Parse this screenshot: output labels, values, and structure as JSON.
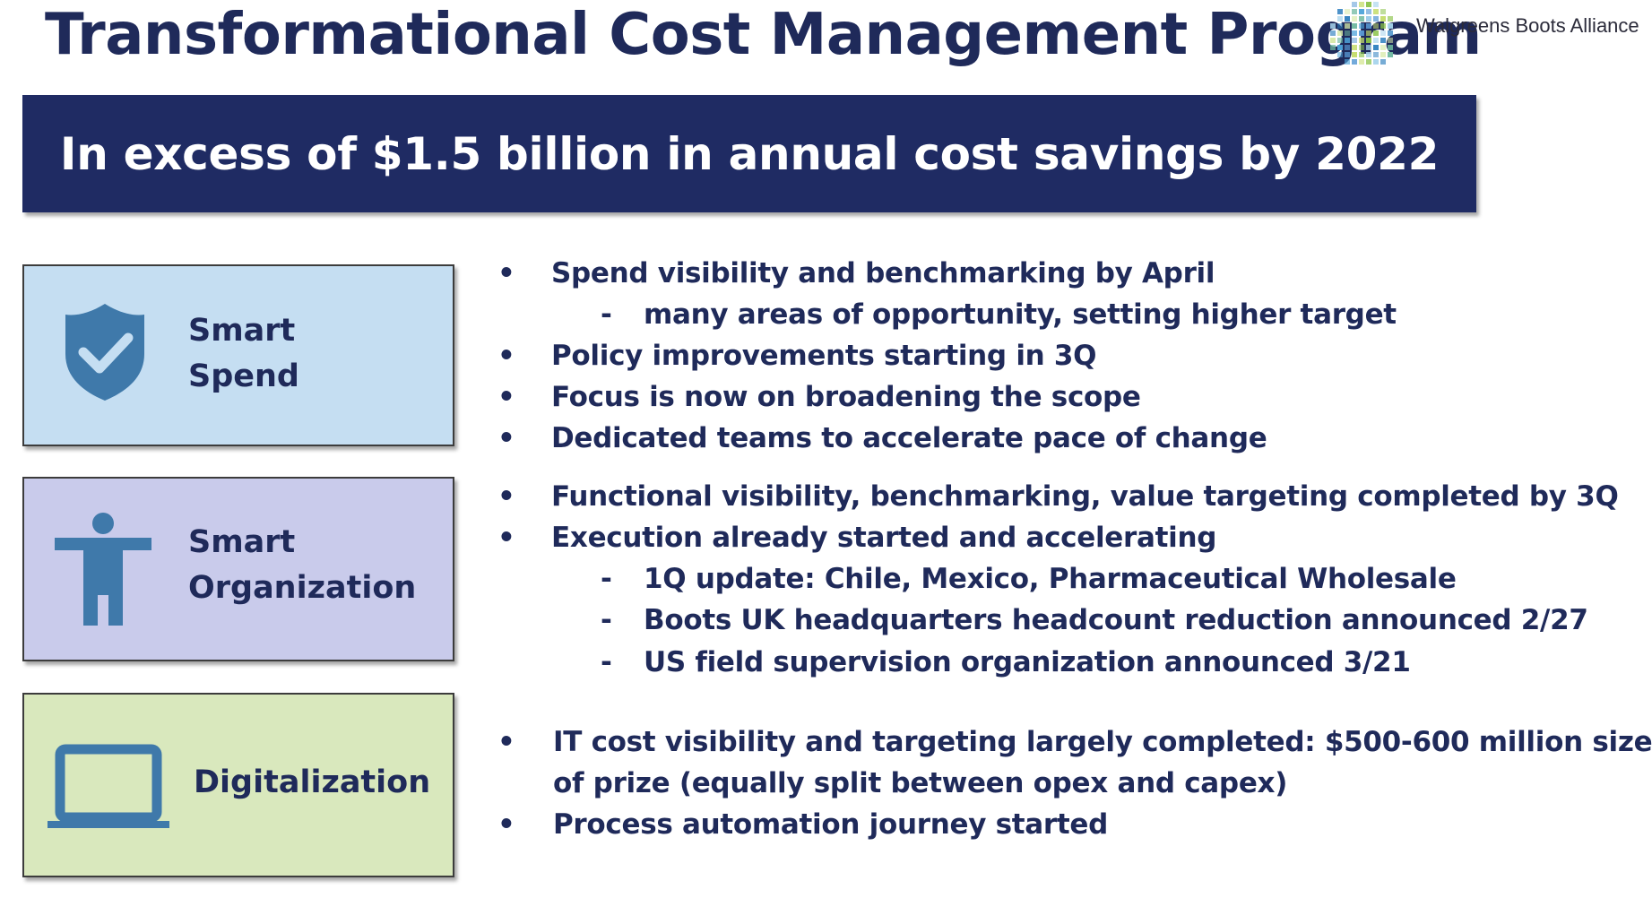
{
  "header": {
    "title": "Transformational Cost Management Program",
    "logo_text": "Walgreens Boots Alliance"
  },
  "banner": {
    "text": "In excess of $1.5 billion in annual cost savings by 2022"
  },
  "sections": [
    {
      "label_lines": [
        "Smart",
        "Spend"
      ],
      "icon": "shield-check-icon",
      "bg": "#c5def2",
      "items": [
        {
          "type": "bullet",
          "text": "Spend visibility and benchmarking by April"
        },
        {
          "type": "sub",
          "text": "many areas of opportunity, setting higher target"
        },
        {
          "type": "bullet",
          "text": "Policy improvements starting in 3Q"
        },
        {
          "type": "bullet",
          "text": "Focus is now on broadening the scope"
        },
        {
          "type": "bullet",
          "text": "Dedicated teams to accelerate pace of change"
        }
      ]
    },
    {
      "label_lines": [
        "Smart",
        "Organization"
      ],
      "icon": "person-icon",
      "bg": "#c9cbeb",
      "items": [
        {
          "type": "bullet",
          "text": "Functional visibility, benchmarking, value targeting completed by 3Q"
        },
        {
          "type": "bullet",
          "text": "Execution already started and accelerating"
        },
        {
          "type": "sub",
          "text": "1Q update: Chile, Mexico, Pharmaceutical Wholesale"
        },
        {
          "type": "sub",
          "text": "Boots UK headquarters headcount reduction announced 2/27"
        },
        {
          "type": "sub",
          "text": "US field supervision organization announced 3/21"
        }
      ]
    },
    {
      "label_lines": [
        "Digitalization"
      ],
      "icon": "laptop-icon",
      "bg": "#d9e8bd",
      "items": [
        {
          "type": "bullet",
          "text": "IT cost visibility and targeting largely completed: $500-600 million size"
        },
        {
          "type": "cont",
          "text": "of prize (equally split between opex and capex)"
        },
        {
          "type": "bullet",
          "text": "Process automation journey started"
        }
      ]
    }
  ],
  "colors": {
    "navy": "#1f2b63",
    "text": "#1f2a5a",
    "icon_blue": "#3f79aa"
  }
}
